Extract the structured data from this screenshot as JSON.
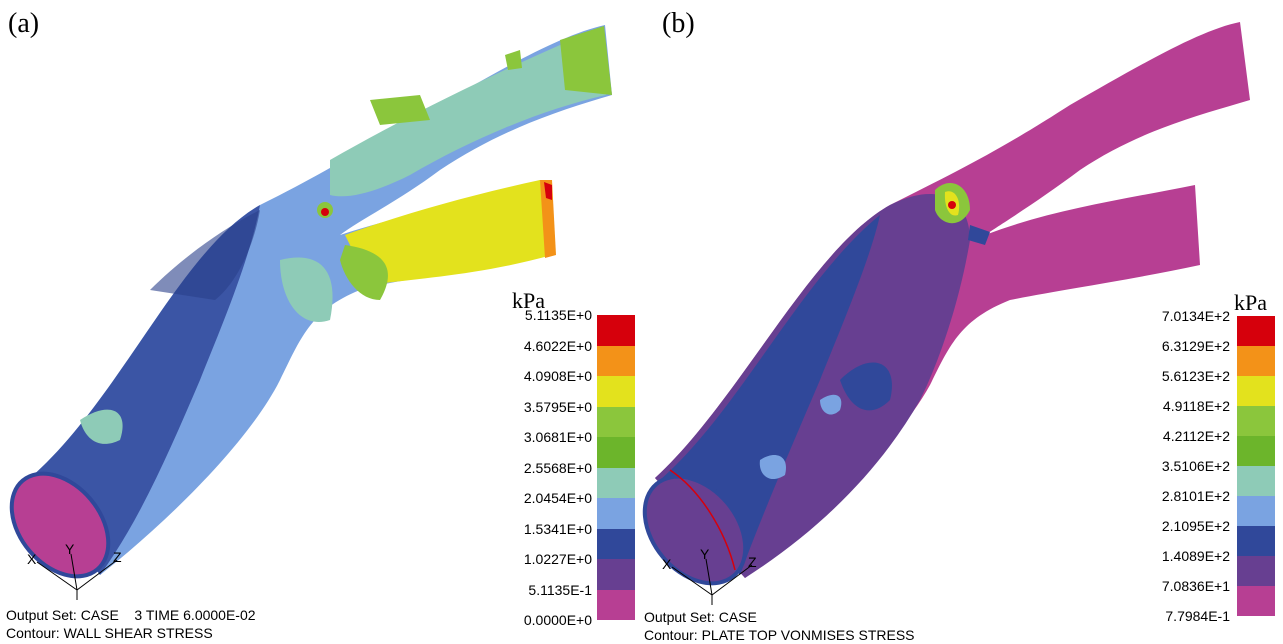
{
  "panels": [
    {
      "label": "(a)",
      "unit": "kPa",
      "legend_values": [
        "5.1135E+0",
        "4.6022E+0",
        "4.0908E+0",
        "3.5795E+0",
        "3.0681E+0",
        "2.5568E+0",
        "2.0454E+0",
        "1.5341E+0",
        "1.0227E+0",
        "5.1135E-1",
        "0.0000E+0"
      ],
      "footer_line1": "Output Set: CASE    3 TIME 6.0000E-02",
      "footer_line2": "Contour: WALL SHEAR STRESS"
    },
    {
      "label": "(b)",
      "unit": "kPa",
      "legend_values": [
        "7.0134E+2",
        "6.3129E+2",
        "5.6123E+2",
        "4.9118E+2",
        "4.2112E+2",
        "3.5106E+2",
        "2.8101E+2",
        "2.1095E+2",
        "1.4089E+2",
        "7.0836E+1",
        "7.7984E-1"
      ],
      "footer_line1": "Output Set: CASE",
      "footer_line2": "Contour: PLATE TOP VONMISES STRESS"
    }
  ],
  "legend_colors": [
    "#d6000c",
    "#f39218",
    "#e3e21d",
    "#8bc63c",
    "#6cb52b",
    "#8ecbb7",
    "#7aa3e1",
    "#30489a",
    "#673f91",
    "#b73f93"
  ],
  "axis_labels": {
    "x": "X",
    "y": "Y",
    "z": "Z"
  }
}
